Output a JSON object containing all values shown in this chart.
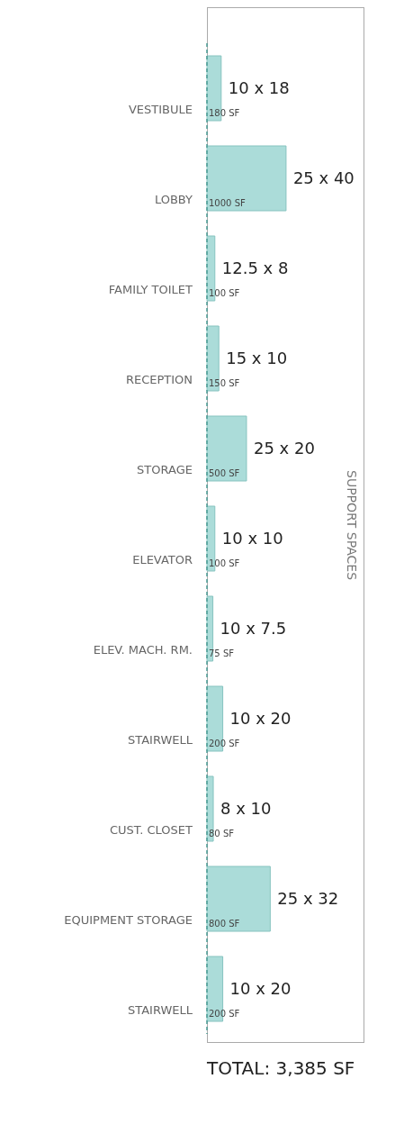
{
  "chart_data": {
    "type": "bar",
    "orientation": "horizontal",
    "ylabel": "SUPPORT SPACES",
    "categories": [
      "VESTIBULE",
      "LOBBY",
      "FAMILY TOILET",
      "RECEPTION",
      "STORAGE",
      "ELEVATOR",
      "ELEV. MACH. RM.",
      "STAIRWELL",
      "CUST. CLOSET",
      "EQUIPMENT STORAGE",
      "STAIRWELL"
    ],
    "values": [
      180,
      1000,
      100,
      150,
      500,
      100,
      75,
      200,
      80,
      800,
      200
    ],
    "value_labels": [
      "180 SF",
      "1000 SF",
      "100 SF",
      "150 SF",
      "500 SF",
      "100 SF",
      "75 SF",
      "200 SF",
      "80 SF",
      "800 SF",
      "200 SF"
    ],
    "color": "#abdcd9",
    "annotations": [
      "10 x 18",
      "25 x 40",
      "12.5 x 8",
      "15 x 10",
      "25 x 20",
      "10 x 10",
      "10 x 7.5",
      "10 x 20",
      "8 x 10",
      "25 x 32",
      "10 x 20",
      "TOTAL: 3,385 SF"
    ]
  }
}
